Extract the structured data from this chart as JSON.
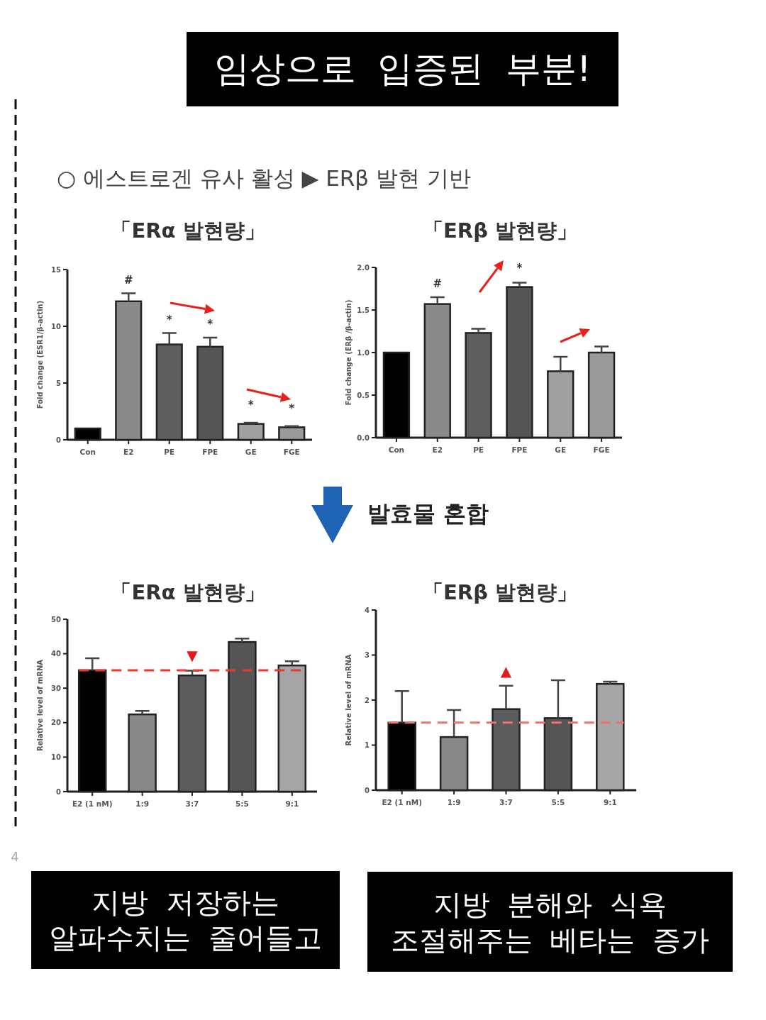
{
  "chart_data": [
    {
      "type": "bar",
      "title": "「ERα 발현량」",
      "ylabel": "Fold change (ESR1/β-actin)",
      "categories": [
        "Con",
        "E2",
        "PE",
        "FPE",
        "GE",
        "FGE"
      ],
      "values": [
        1.0,
        12.2,
        8.4,
        8.2,
        1.4,
        1.1
      ],
      "errors": [
        null,
        0.7,
        1.0,
        0.8,
        0.1,
        0.1
      ],
      "colors": [
        "#000000",
        "#8a8a8a",
        "#5e5e5e",
        "#555555",
        "#a0a0a0",
        "#9a9a9a"
      ],
      "ylim": [
        0,
        15
      ],
      "yticks": [
        0,
        5,
        10,
        15
      ],
      "annotations": [
        "임상으로 입증된 부분!",
        "○ 에스트로겐 유사 활성 ▶ ERβ 발현 기반",
        "#",
        "*",
        "*",
        "*",
        "*"
      ]
    },
    {
      "type": "bar",
      "title": "「ERβ 발현량」",
      "ylabel": "Fold change (ERβ /β-actin)",
      "categories": [
        "Con",
        "E2",
        "PE",
        "FPE",
        "GE",
        "FGE"
      ],
      "values": [
        1.0,
        1.57,
        1.23,
        1.77,
        0.78,
        1.0
      ],
      "errors": [
        null,
        0.08,
        0.05,
        0.05,
        0.17,
        0.07
      ],
      "colors": [
        "#000000",
        "#8a8a8a",
        "#5e5e5e",
        "#555555",
        "#a0a0a0",
        "#9a9a9a"
      ],
      "ylim": [
        0,
        2
      ],
      "yticks": [
        {
          "value": 0,
          "label": "0.0"
        },
        {
          "value": 0.5,
          "label": "0.5"
        },
        {
          "value": 1,
          "label": "1.0"
        },
        {
          "value": 1.5,
          "label": "1.5"
        },
        {
          "value": 2,
          "label": "2.0"
        }
      ],
      "annotations": [
        "#",
        "*"
      ]
    },
    {
      "type": "bar",
      "title": "「ERα 발현량」",
      "ylabel": "Relative level of mRNA",
      "categories": [
        "E2 (1 nM)",
        "1:9",
        "3:7",
        "5:5",
        "9:1"
      ],
      "values": [
        35.2,
        22.4,
        33.7,
        43.4,
        36.6
      ],
      "errors": [
        3.5,
        1.0,
        1.4,
        1.0,
        1.2
      ],
      "colors": [
        "#000000",
        "#888888",
        "#5c5c5c",
        "#555555",
        "#a5a5a5"
      ],
      "ylim": [
        0,
        50
      ],
      "yticks": [
        0,
        10,
        20,
        30,
        40,
        50
      ],
      "ref_lines": [
        {
          "axis": "y",
          "value": 35.2,
          "color": "#e8392f",
          "line_style": "dashed"
        }
      ],
      "annotations": [
        "발효물 혼합",
        "지방 저장하는 알파수치는 줄어들고",
        "4",
        "▼"
      ]
    },
    {
      "type": "bar",
      "title": "「ERβ 발현량」",
      "ylabel": "Relative level of mRNA",
      "categories": [
        "E2 (1 nM)",
        "1:9",
        "3:7",
        "5:5",
        "9:1"
      ],
      "values": [
        1.5,
        1.18,
        1.8,
        1.6,
        2.36
      ],
      "errors": [
        0.7,
        0.6,
        0.52,
        0.84,
        0.05
      ],
      "colors": [
        "#000000",
        "#888888",
        "#5c5c5c",
        "#555555",
        "#a5a5a5"
      ],
      "ylim": [
        0,
        4
      ],
      "yticks": [
        0,
        1,
        2,
        3,
        4
      ],
      "ref_lines": [
        {
          "axis": "y",
          "value": 1.5,
          "color": "#f07070",
          "line_style": "dashed"
        }
      ],
      "annotations": [
        "지방 분해와 식욕 조절해주는 베타는 증가",
        "▲"
      ]
    }
  ]
}
